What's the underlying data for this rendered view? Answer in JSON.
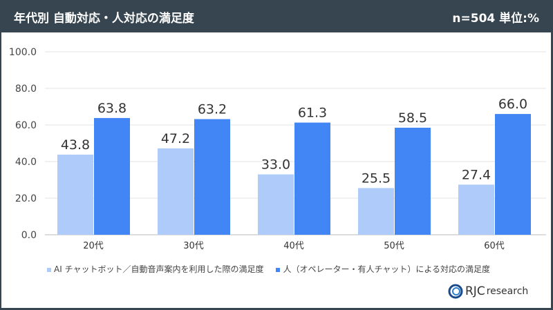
{
  "header": {
    "title": "年代別 自動対応・人対応の満足度",
    "meta": "n=504  単位:%"
  },
  "chart_data": {
    "type": "bar",
    "categories": [
      "20代",
      "30代",
      "40代",
      "50代",
      "60代"
    ],
    "series": [
      {
        "name": "AI チャットボット／自動音声案内を利用した際の満足度",
        "values": [
          43.8,
          47.2,
          33.0,
          25.5,
          27.4
        ],
        "color": "#aecbfa"
      },
      {
        "name": "人（オペレーター・有人チャット）による対応の満足度",
        "values": [
          63.8,
          63.2,
          61.3,
          58.5,
          66.0
        ],
        "color": "#4285f4"
      }
    ],
    "ylim": [
      0,
      100
    ],
    "yticks": [
      "0.0",
      "20.0",
      "40.0",
      "60.0",
      "80.0",
      "100.0"
    ],
    "grid": true,
    "legend": "bottom"
  },
  "logo": {
    "text": "RJC",
    "sub": "research",
    "since": "since 1967"
  }
}
